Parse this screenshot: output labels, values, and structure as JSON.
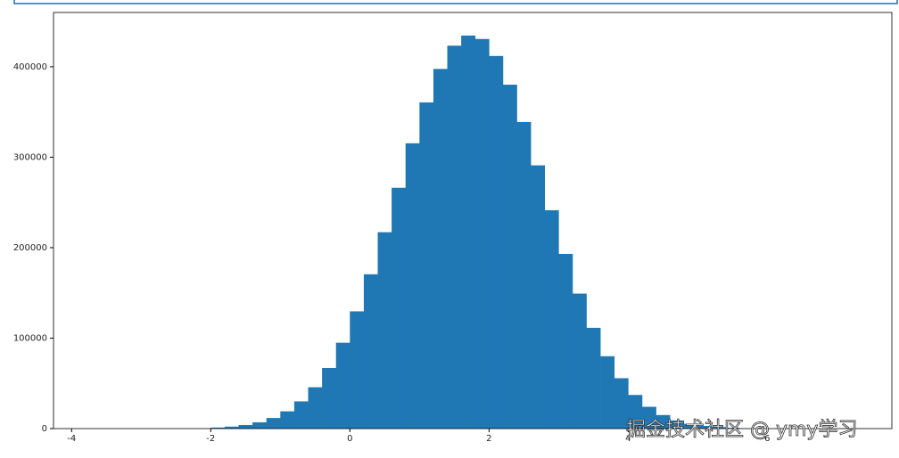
{
  "chart_data": {
    "type": "histogram",
    "bins": [
      -2.0,
      -1.8,
      -1.6,
      -1.4,
      -1.2,
      -1.0,
      -0.8,
      -0.6,
      -0.4,
      -0.2,
      0.0,
      0.2,
      0.4,
      0.6,
      0.8,
      1.0,
      1.2,
      1.4,
      1.6,
      1.8,
      2.0,
      2.2,
      2.4,
      2.6,
      2.8,
      3.0,
      3.2,
      3.4,
      3.6,
      3.8,
      4.0,
      4.2,
      4.4,
      4.6,
      4.8,
      5.0,
      5.2,
      5.4,
      5.6
    ],
    "values": [
      1160,
      2170,
      3960,
      6930,
      11700,
      19100,
      30100,
      45700,
      67000,
      94900,
      129600,
      170600,
      217100,
      266200,
      315400,
      360600,
      397600,
      423300,
      434500,
      430700,
      411900,
      380200,
      338900,
      291000,
      241400,
      193100,
      149200,
      111400,
      80000,
      55700,
      37200,
      24100,
      15000,
      9050,
      5260,
      2950,
      1600,
      830
    ],
    "color": "#1f77b4",
    "xlim": [
      -4.26,
      7.79
    ],
    "xticks": [
      -4,
      -2,
      0,
      2,
      4,
      6
    ],
    "ylim": [
      0,
      460000
    ],
    "yticks": [
      0,
      100000,
      200000,
      300000,
      400000
    ],
    "watermark": "掘金技术社区 @ ymy学习"
  }
}
